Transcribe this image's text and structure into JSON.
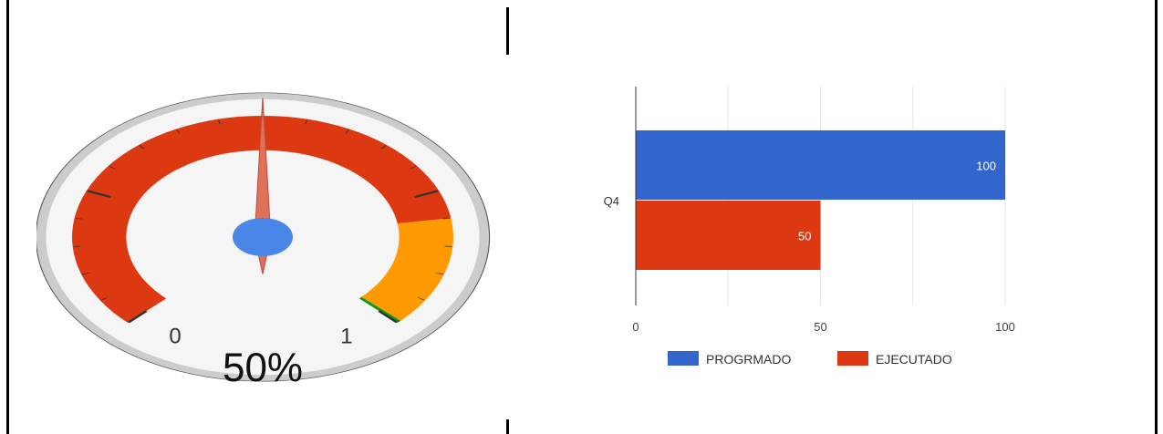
{
  "chart_data": [
    {
      "type": "gauge",
      "min": 0,
      "max": 1,
      "value": 0.5,
      "tick_labels": [
        "0",
        "1"
      ],
      "value_label": "50%",
      "bands": [
        {
          "from": 0,
          "to": 0.8,
          "color": "#dc3912"
        },
        {
          "from": 0.8,
          "to": 0.995,
          "color": "#ff9900"
        },
        {
          "from": 0.995,
          "to": 1,
          "color": "#109618"
        }
      ],
      "needle_color": "#e0705a",
      "hub_color": "#4a86e8"
    },
    {
      "type": "bar",
      "orientation": "horizontal",
      "categories": [
        "Q4"
      ],
      "series": [
        {
          "name": "PROGRMADO",
          "values": [
            100
          ],
          "color": "#3366cc"
        },
        {
          "name": "EJECUTADO",
          "values": [
            50
          ],
          "color": "#dc3912"
        }
      ],
      "data_labels": [
        [
          "100"
        ],
        [
          "50"
        ]
      ],
      "xticks": [
        "0",
        "50",
        "100"
      ],
      "xlim": [
        0,
        100
      ],
      "grid": true,
      "legend": "bottom"
    }
  ]
}
